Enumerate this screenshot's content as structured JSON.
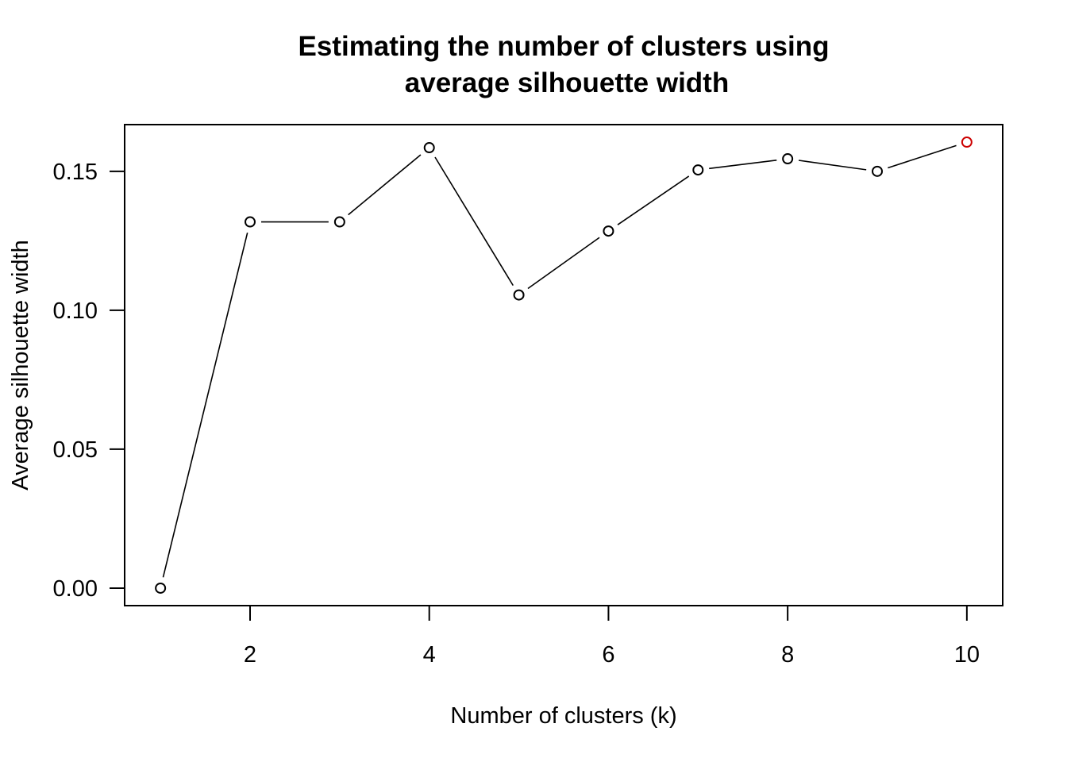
{
  "chart_data": {
    "type": "line",
    "title": [
      "Estimating the number of clusters using",
      "average silhouette width"
    ],
    "xlabel": "Number of clusters (k)",
    "ylabel": "Average silhouette width",
    "x": [
      1,
      2,
      3,
      4,
      5,
      6,
      7,
      8,
      9,
      10
    ],
    "series": [
      {
        "values": [
          0.0,
          0.1318,
          0.1318,
          0.1585,
          0.1055,
          0.1285,
          0.1505,
          0.1545,
          0.15,
          0.1605
        ]
      }
    ],
    "highlight": {
      "x": 10,
      "color": "#cc0000"
    },
    "point_color": "#000000",
    "xlim": [
      0.6,
      10.4
    ],
    "ylim": [
      -0.0063,
      0.1668
    ],
    "x_ticks": [
      2,
      4,
      6,
      8,
      10
    ],
    "y_ticks": [
      0.0,
      0.05,
      0.1,
      0.15
    ],
    "x_tick_labels": [
      "2",
      "4",
      "6",
      "8",
      "10"
    ],
    "y_tick_labels": [
      "0.00",
      "0.05",
      "0.10",
      "0.15"
    ],
    "grid": false,
    "marker": "open-circle"
  }
}
